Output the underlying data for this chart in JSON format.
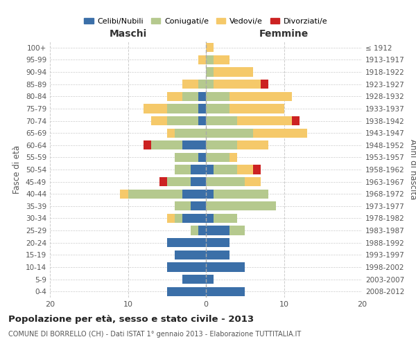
{
  "age_groups": [
    "0-4",
    "5-9",
    "10-14",
    "15-19",
    "20-24",
    "25-29",
    "30-34",
    "35-39",
    "40-44",
    "45-49",
    "50-54",
    "55-59",
    "60-64",
    "65-69",
    "70-74",
    "75-79",
    "80-84",
    "85-89",
    "90-94",
    "95-99",
    "100+"
  ],
  "birth_years": [
    "2008-2012",
    "2003-2007",
    "1998-2002",
    "1993-1997",
    "1988-1992",
    "1983-1987",
    "1978-1982",
    "1973-1977",
    "1968-1972",
    "1963-1967",
    "1958-1962",
    "1953-1957",
    "1948-1952",
    "1943-1947",
    "1938-1942",
    "1933-1937",
    "1928-1932",
    "1923-1927",
    "1918-1922",
    "1913-1917",
    "≤ 1912"
  ],
  "colors": {
    "celibi": "#3b6fa8",
    "coniugati": "#b5c98e",
    "vedovi": "#f5c96a",
    "divorziati": "#cc2222"
  },
  "males": {
    "celibi": [
      5,
      3,
      5,
      4,
      5,
      1,
      3,
      2,
      3,
      2,
      2,
      1,
      3,
      0,
      1,
      1,
      1,
      0,
      0,
      0,
      0
    ],
    "coniugati": [
      0,
      0,
      0,
      0,
      0,
      1,
      1,
      2,
      7,
      3,
      2,
      3,
      4,
      4,
      4,
      4,
      2,
      1,
      0,
      0,
      0
    ],
    "vedovi": [
      0,
      0,
      0,
      0,
      0,
      0,
      1,
      0,
      1,
      0,
      0,
      0,
      0,
      1,
      2,
      3,
      2,
      2,
      0,
      1,
      0
    ],
    "divorziati": [
      0,
      0,
      0,
      0,
      0,
      0,
      0,
      0,
      0,
      1,
      0,
      0,
      1,
      0,
      0,
      0,
      0,
      0,
      0,
      0,
      0
    ]
  },
  "females": {
    "celibi": [
      5,
      1,
      5,
      3,
      3,
      3,
      1,
      0,
      1,
      0,
      1,
      0,
      0,
      0,
      0,
      0,
      0,
      0,
      0,
      0,
      0
    ],
    "coniugati": [
      0,
      0,
      0,
      0,
      0,
      2,
      3,
      9,
      7,
      5,
      3,
      3,
      4,
      6,
      4,
      3,
      3,
      1,
      1,
      1,
      0
    ],
    "vedovi": [
      0,
      0,
      0,
      0,
      0,
      0,
      0,
      0,
      0,
      2,
      2,
      1,
      4,
      7,
      7,
      7,
      8,
      6,
      5,
      2,
      1
    ],
    "divorziati": [
      0,
      0,
      0,
      0,
      0,
      0,
      0,
      0,
      0,
      0,
      1,
      0,
      0,
      0,
      1,
      0,
      0,
      1,
      0,
      0,
      0
    ]
  },
  "title": "Popolazione per età, sesso e stato civile - 2013",
  "subtitle": "COMUNE DI BORRELLO (CH) - Dati ISTAT 1° gennaio 2013 - Elaborazione TUTTITALIA.IT",
  "xlabel_left": "Maschi",
  "xlabel_right": "Femmine",
  "ylabel_left": "Fasce di età",
  "ylabel_right": "Anni di nascita",
  "xlim": 20,
  "legend_labels": [
    "Celibi/Nubili",
    "Coniugati/e",
    "Vedovi/e",
    "Divorziati/e"
  ],
  "background_color": "#ffffff",
  "grid_color": "#cccccc"
}
